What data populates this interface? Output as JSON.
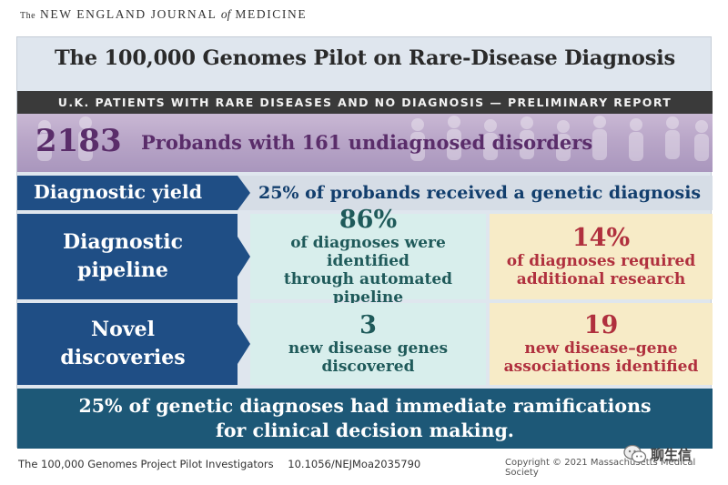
{
  "journal": {
    "the": "The",
    "name_part1": "NEW ENGLAND JOURNAL",
    "of": "of",
    "name_part2": "MEDICINE"
  },
  "title": "The 100,000 Genomes Pilot on Rare-Disease Diagnosis",
  "subtitle": "U.K. PATIENTS WITH RARE DISEASES AND NO DIAGNOSIS — PRELIMINARY REPORT",
  "probands": {
    "number": "2183",
    "text": "Probands with 161 undiagnosed disorders"
  },
  "diagnostic_yield": {
    "label": "Diagnostic yield",
    "value": "25% of probands received a genetic diagnosis"
  },
  "diagnostic_pipeline": {
    "label_line1": "Diagnostic",
    "label_line2": "pipeline",
    "left": {
      "value": "86%",
      "line1": "of diagnoses were identified",
      "line2": "through automated pipeline"
    },
    "right": {
      "value": "14%",
      "line1": "of diagnoses required",
      "line2": "additional research"
    }
  },
  "novel_discoveries": {
    "label_line1": "Novel",
    "label_line2": "discoveries",
    "left": {
      "value": "3",
      "line1": "new disease genes",
      "line2": "discovered"
    },
    "right": {
      "value": "19",
      "line1": "new disease–gene",
      "line2": "associations identified"
    }
  },
  "conclusion": {
    "line1": "25% of genetic diagnoses had immediate ramifications",
    "line2": "for clinical decision making."
  },
  "footer": {
    "authors": "The 100,000 Genomes Project Pilot Investigators",
    "doi": "10.1056/NEJMoa2035790",
    "copyright": "Copyright © 2021 Massachusetts Medical Society"
  },
  "watermark": {
    "text": "聊生信",
    "icon": "wechat-icon"
  },
  "colors": {
    "navy": "#1f4e85",
    "teal_cell": "#d8eeec",
    "yellow_cell": "#f7ebc7",
    "purple_text": "#5a2d6a",
    "red_text": "#b0303e",
    "bottom_bar": "#1d5877"
  }
}
